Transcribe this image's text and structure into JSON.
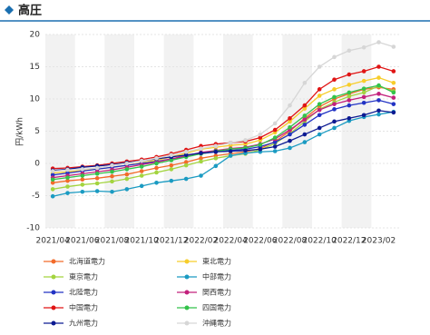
{
  "chart_data": {
    "type": "line",
    "title": "高圧",
    "y_label": "円/kWh",
    "categories": [
      "2021/04",
      null,
      "2021/06",
      null,
      "2021/08",
      null,
      "2021/10",
      null,
      "2021/12",
      null,
      "2022/02",
      null,
      "2022/04",
      null,
      "2022/06",
      null,
      "2022/08",
      null,
      "2022/10",
      null,
      "2022/12",
      null,
      "2023/02",
      null
    ],
    "ylim": [
      -10,
      20
    ],
    "yticks": [
      -10,
      -5,
      0,
      5,
      10,
      15,
      20
    ],
    "grid": true,
    "series": [
      {
        "name": "北海道電力",
        "color": "#f26b2a",
        "values": [
          -3.0,
          -2.7,
          -2.5,
          -2.3,
          -2.0,
          -1.7,
          -1.2,
          -0.7,
          -0.3,
          0.2,
          0.8,
          1.2,
          1.5,
          1.8,
          2.3,
          3.4,
          5.0,
          7.0,
          8.8,
          10.0,
          10.8,
          11.5,
          11.8,
          11.5
        ]
      },
      {
        "name": "東北電力",
        "color": "#f7cd2a",
        "values": [
          -1.5,
          -1.3,
          -1.1,
          -0.9,
          -0.6,
          -0.3,
          0.1,
          0.5,
          1.0,
          1.6,
          2.2,
          2.5,
          2.8,
          3.0,
          3.6,
          4.8,
          6.5,
          8.5,
          10.5,
          11.5,
          12.2,
          12.8,
          13.3,
          12.5
        ]
      },
      {
        "name": "東京電力",
        "color": "#a3d43f",
        "values": [
          -4.0,
          -3.6,
          -3.3,
          -3.1,
          -2.8,
          -2.4,
          -1.9,
          -1.4,
          -0.9,
          -0.3,
          0.3,
          0.8,
          1.2,
          1.5,
          2.1,
          3.1,
          4.6,
          6.5,
          8.4,
          9.5,
          10.4,
          11.0,
          12.0,
          11.2
        ]
      },
      {
        "name": "中部電力",
        "color": "#1b9bc2",
        "values": [
          -5.1,
          -4.6,
          -4.4,
          -4.3,
          -4.4,
          -4.0,
          -3.5,
          -3.0,
          -2.7,
          -2.4,
          -1.9,
          -0.4,
          1.2,
          1.6,
          1.8,
          1.9,
          2.4,
          3.3,
          4.5,
          5.5,
          6.6,
          7.2,
          7.6,
          8.0
        ]
      },
      {
        "name": "北陸電力",
        "color": "#2233c4",
        "values": [
          -1.8,
          -1.5,
          -1.2,
          -0.9,
          -0.6,
          -0.3,
          0.0,
          0.3,
          0.7,
          1.1,
          1.5,
          1.8,
          2.0,
          2.2,
          2.6,
          3.3,
          4.5,
          6.0,
          7.5,
          8.4,
          9.0,
          9.4,
          9.8,
          9.2
        ]
      },
      {
        "name": "関西電力",
        "color": "#c2207c",
        "values": [
          -2.2,
          -1.9,
          -1.6,
          -1.3,
          -1.0,
          -0.6,
          -0.2,
          0.2,
          0.7,
          1.2,
          1.7,
          2.0,
          2.3,
          2.5,
          3.0,
          3.8,
          5.2,
          6.8,
          8.3,
          9.2,
          9.8,
          10.3,
          10.8,
          10.2
        ]
      },
      {
        "name": "中国電力",
        "color": "#e01414",
        "values": [
          -0.8,
          -0.7,
          -0.5,
          -0.3,
          0.0,
          0.3,
          0.6,
          1.0,
          1.5,
          2.1,
          2.7,
          3.0,
          3.2,
          3.4,
          4.0,
          5.2,
          7.0,
          9.0,
          11.5,
          13.0,
          13.8,
          14.3,
          15.0,
          14.3
        ]
      },
      {
        "name": "四国電力",
        "color": "#33c24a",
        "values": [
          -2.5,
          -2.2,
          -1.9,
          -1.6,
          -1.3,
          -0.9,
          -0.5,
          0.0,
          0.5,
          1.0,
          1.5,
          1.9,
          2.2,
          2.4,
          2.9,
          4.0,
          5.6,
          7.4,
          9.2,
          10.3,
          11.0,
          11.6,
          12.1,
          11.0
        ]
      },
      {
        "name": "九州電力",
        "color": "#0c1a92",
        "values": [
          -1.1,
          -0.9,
          -0.6,
          -0.4,
          -0.2,
          0.1,
          0.4,
          0.7,
          1.0,
          1.3,
          1.6,
          1.8,
          1.9,
          2.0,
          2.2,
          2.6,
          3.5,
          4.5,
          5.5,
          6.5,
          7.0,
          7.5,
          8.2,
          7.9
        ]
      },
      {
        "name": "沖縄電力",
        "color": "#d6d6d6",
        "values": [
          -1.2,
          -1.0,
          -0.9,
          -0.7,
          -0.3,
          0.0,
          0.4,
          0.8,
          1.3,
          1.8,
          2.3,
          2.7,
          3.2,
          3.6,
          4.5,
          6.2,
          9.0,
          12.5,
          15.0,
          16.5,
          17.5,
          18.0,
          18.8,
          18.1
        ]
      }
    ]
  }
}
